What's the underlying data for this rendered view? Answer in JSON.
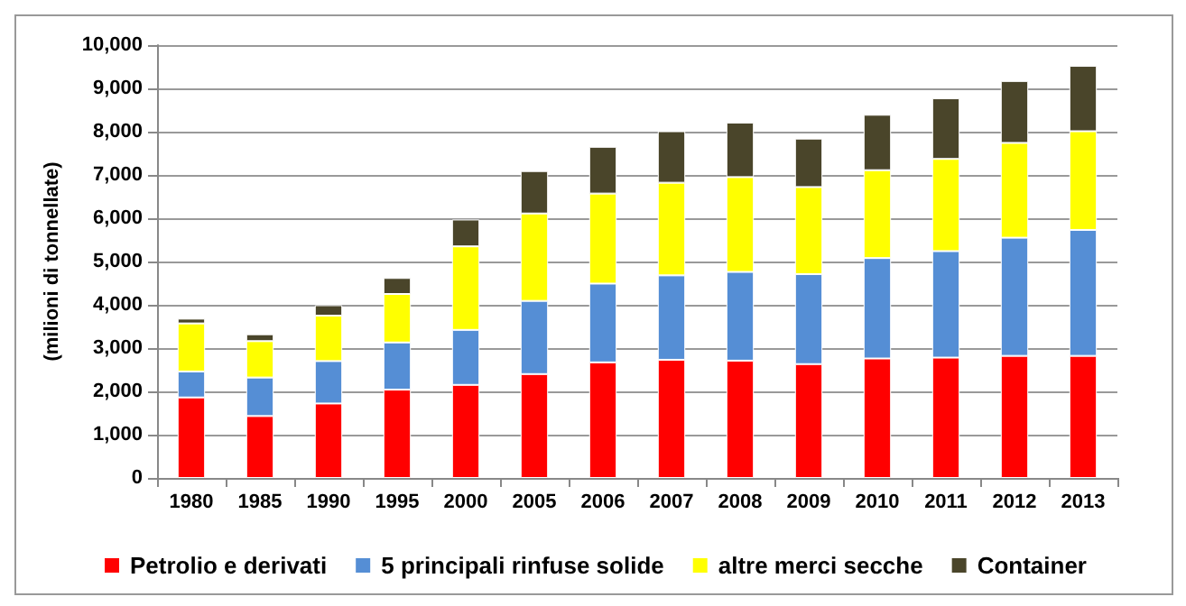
{
  "chart_data": {
    "type": "bar",
    "stacked": true,
    "ylabel": "(milioni di tonnellate)",
    "categories": [
      "1980",
      "1985",
      "1990",
      "1995",
      "2000",
      "2005",
      "2006",
      "2007",
      "2008",
      "2009",
      "2010",
      "2011",
      "2012",
      "2013"
    ],
    "series": [
      {
        "name": "Petrolio e derivati",
        "color": "#ff0000",
        "values": [
          1860,
          1430,
          1720,
          2040,
          2150,
          2400,
          2670,
          2730,
          2710,
          2630,
          2760,
          2780,
          2820,
          2820
        ]
      },
      {
        "name": "5 principali rinfuse solide",
        "color": "#558ed5",
        "values": [
          600,
          890,
          980,
          1090,
          1270,
          1690,
          1820,
          1950,
          2050,
          2080,
          2320,
          2460,
          2730,
          2910
        ]
      },
      {
        "name": "altre merci secche",
        "color": "#ffff00",
        "values": [
          1110,
          840,
          1050,
          1120,
          1930,
          2020,
          2080,
          2140,
          2190,
          2010,
          2030,
          2130,
          2190,
          2280
        ]
      },
      {
        "name": "Container",
        "color": "#4a452a",
        "values": [
          110,
          160,
          240,
          370,
          620,
          980,
          1080,
          1190,
          1260,
          1120,
          1280,
          1400,
          1430,
          1510
        ]
      }
    ],
    "ylim": [
      0,
      10000
    ],
    "yticks": [
      0,
      {
        "value": 1000,
        "label": "1,000"
      },
      {
        "value": 2000,
        "label": "2,000"
      },
      {
        "value": 3000,
        "label": "3,000"
      },
      {
        "value": 4000,
        "label": "4,000"
      },
      {
        "value": 5000,
        "label": "5,000"
      },
      {
        "value": 6000,
        "label": "6,000"
      },
      {
        "value": 7000,
        "label": "7,000"
      },
      {
        "value": 8000,
        "label": "8,000"
      },
      {
        "value": 9000,
        "label": "9,000"
      },
      {
        "value": 10000,
        "label": "10,000"
      }
    ],
    "grid": "y",
    "legend": "bottom"
  }
}
